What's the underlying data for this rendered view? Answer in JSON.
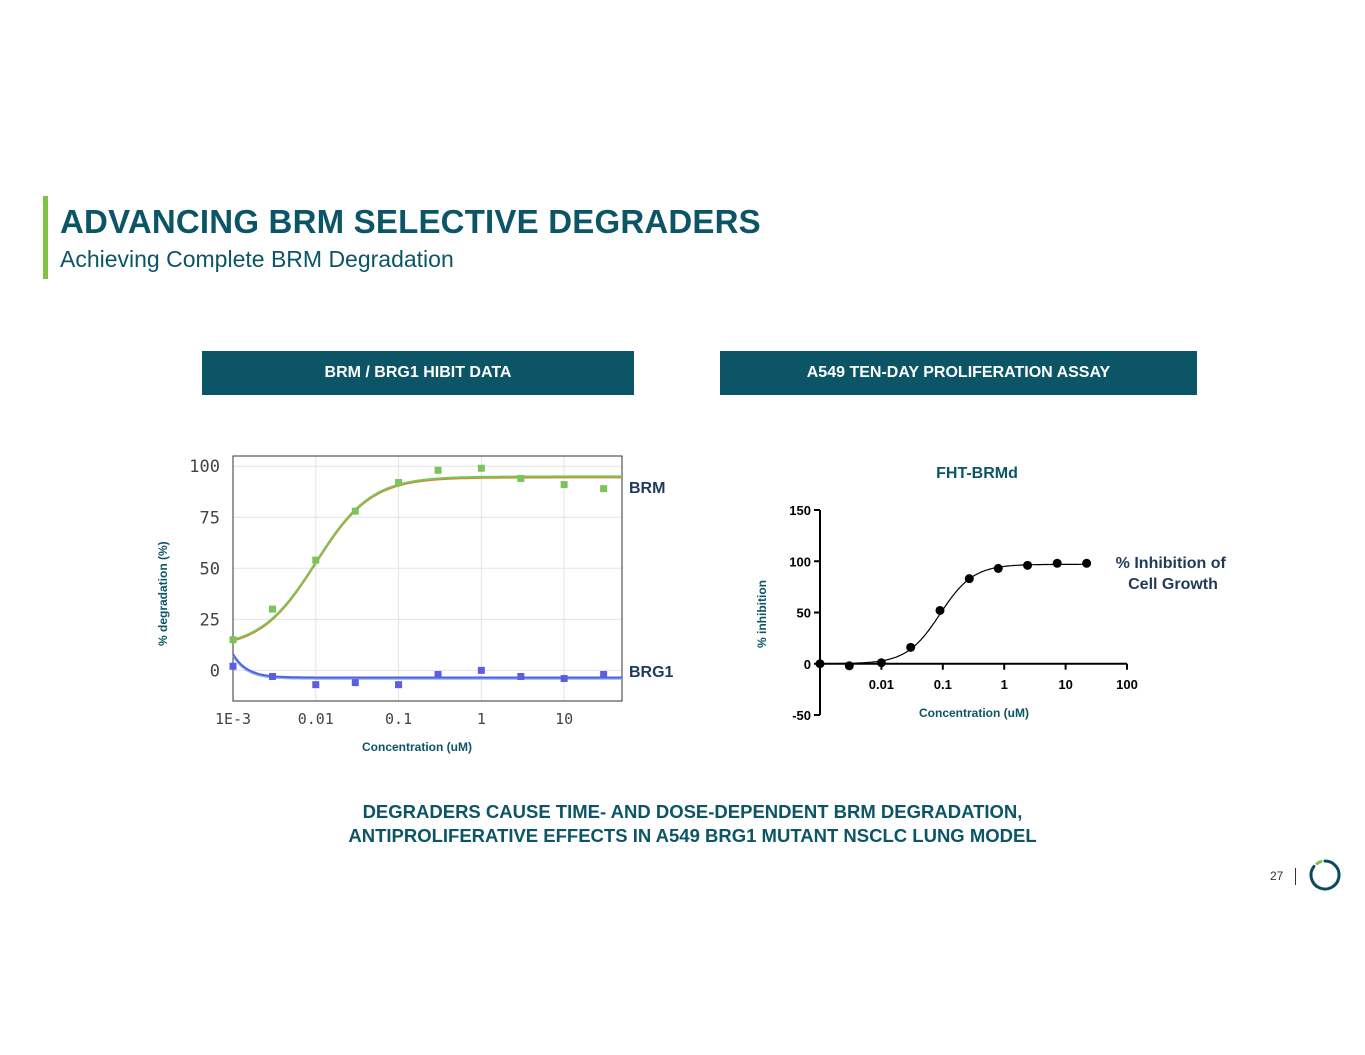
{
  "title": "ADVANCING BRM SELECTIVE DEGRADERS",
  "subtitle": "Achieving Complete BRM Degradation",
  "sections": {
    "left_header": "BRM / BRG1 HIBIT DATA",
    "right_header": "A549 TEN-DAY PROLIFERATION ASSAY"
  },
  "footer": {
    "line1": "DEGRADERS CAUSE TIME- AND DOSE-DEPENDENT BRM DEGRADATION,",
    "line2": "ANTIPROLIFERATIVE EFFECTS IN A549 BRG1 MUTANT NSCLC LUNG MODEL"
  },
  "page_number": "27",
  "colors": {
    "accent": "#7dc242",
    "brand": "#0b5566"
  },
  "icons": {
    "logo": "ring-logo-icon"
  },
  "chart_data": [
    {
      "type": "scatter",
      "title": "",
      "xlabel": "Concentration (uM)",
      "ylabel": "% degradation (%)",
      "x_scale": "log",
      "xlim": [
        0.001,
        50
      ],
      "ylim": [
        -15,
        105
      ],
      "grid": true,
      "x_ticks": [
        "1E-3",
        "0.01",
        "0.1",
        "1",
        "10"
      ],
      "y_ticks": [
        "100",
        "75",
        "50",
        "25",
        "0"
      ],
      "series": [
        {
          "name": "BRM",
          "color": "#7cc35a",
          "points": [
            {
              "x": 0.001,
              "y": 15
            },
            {
              "x": 0.003,
              "y": 30
            },
            {
              "x": 0.01,
              "y": 54
            },
            {
              "x": 0.03,
              "y": 78
            },
            {
              "x": 0.1,
              "y": 92
            },
            {
              "x": 0.3,
              "y": 98
            },
            {
              "x": 1,
              "y": 99
            },
            {
              "x": 3,
              "y": 94
            },
            {
              "x": 10,
              "y": 91
            },
            {
              "x": 30,
              "y": 89
            }
          ],
          "fit": {
            "bottom": 0,
            "top": 95,
            "ec50": 0.01,
            "hill": 1.3
          }
        },
        {
          "name": "BRG1",
          "color": "#5b5ee0",
          "points": [
            {
              "x": 0.001,
              "y": 2
            },
            {
              "x": 0.003,
              "y": -3
            },
            {
              "x": 0.01,
              "y": -7
            },
            {
              "x": 0.03,
              "y": -6
            },
            {
              "x": 0.1,
              "y": -7
            },
            {
              "x": 0.3,
              "y": -2
            },
            {
              "x": 1,
              "y": 0
            },
            {
              "x": 3,
              "y": -3
            },
            {
              "x": 10,
              "y": -4
            },
            {
              "x": 30,
              "y": -2
            }
          ],
          "fit": {
            "base": -3.5,
            "start": 8
          }
        }
      ]
    },
    {
      "type": "scatter",
      "title": "FHT-BRMd",
      "xlabel": "Concentration (uM)",
      "ylabel": "% inhibition",
      "x_scale": "log",
      "xlim": [
        0.001,
        100
      ],
      "ylim": [
        -50,
        150
      ],
      "x_ticks": [
        "0.01",
        "0.1",
        "1",
        "10",
        "100"
      ],
      "y_ticks": [
        "150",
        "100",
        "50",
        "0",
        "-50"
      ],
      "legend": "% Inhibition of Cell Growth",
      "series": [
        {
          "name": "% Inhibition of Cell Growth",
          "color": "#000000",
          "points": [
            {
              "x": 0.001,
              "y": 0
            },
            {
              "x": 0.003,
              "y": -2
            },
            {
              "x": 0.01,
              "y": 1
            },
            {
              "x": 0.03,
              "y": 16
            },
            {
              "x": 0.09,
              "y": 52
            },
            {
              "x": 0.27,
              "y": 83
            },
            {
              "x": 0.8,
              "y": 93
            },
            {
              "x": 2.4,
              "y": 96
            },
            {
              "x": 7.3,
              "y": 98
            },
            {
              "x": 22,
              "y": 98
            }
          ],
          "fit": {
            "bottom": 0,
            "top": 97,
            "ec50": 0.09,
            "hill": 1.6
          }
        }
      ]
    }
  ]
}
